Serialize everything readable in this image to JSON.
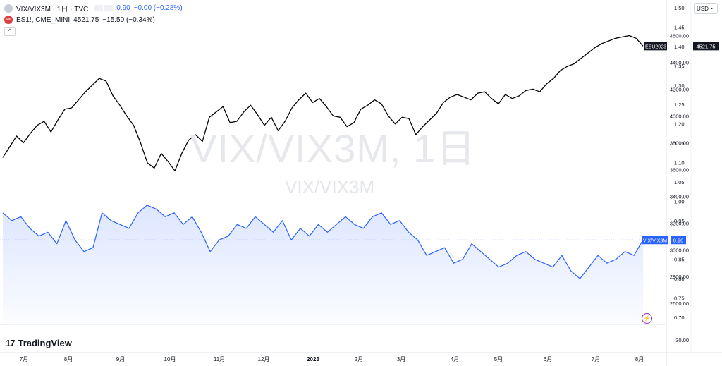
{
  "legend": {
    "main": {
      "symbol": "VIX/VIX3M · 1日 · TVC",
      "value": "0.90",
      "change": "−0.00 (−0.28%)"
    },
    "compare": {
      "symbol": "ES1!, CME_MINI",
      "value": "4521.75",
      "change": "−15.50 (−0.34%)",
      "icon_text": "500"
    },
    "collapse": "^"
  },
  "currency": "USD",
  "watermark": {
    "title": "VIX/VIX3M, 1日",
    "subtitle": "VIX/VIX3M"
  },
  "logo": {
    "mark": "17",
    "text": "TradingView"
  },
  "icons": {
    "flash": "⚡"
  },
  "colors": {
    "es_line": "#000000",
    "vix_line": "#2962ff",
    "vix_area": "#2962ff",
    "label_dark": "#131722"
  },
  "chart_data": {
    "type": "line",
    "x_ticks": [
      "7月",
      "8月",
      "9月",
      "10月",
      "11月",
      "12月",
      "2023",
      "2月",
      "3月",
      "4月",
      "5月",
      "6月",
      "7月",
      "8月"
    ],
    "series": [
      {
        "name": "ESU2023",
        "axis": "left",
        "scale_range": [
          2500,
          4800
        ],
        "last_value": "4521.75",
        "values": [
          3690,
          3770,
          3850,
          3800,
          3870,
          3930,
          3960,
          3880,
          3970,
          4050,
          4060,
          4120,
          4180,
          4230,
          4280,
          4260,
          4150,
          4080,
          4000,
          3930,
          3800,
          3650,
          3610,
          3720,
          3660,
          3590,
          3720,
          3820,
          3860,
          3810,
          3990,
          4030,
          4070,
          3950,
          3960,
          4030,
          4080,
          4010,
          3930,
          3990,
          3890,
          3960,
          4060,
          4120,
          4170,
          4100,
          4130,
          4070,
          4000,
          3990,
          3920,
          3950,
          4050,
          4080,
          4120,
          4090,
          4000,
          3940,
          3990,
          3980,
          3860,
          3920,
          3970,
          4020,
          4100,
          4140,
          4160,
          4140,
          4120,
          4170,
          4180,
          4130,
          4090,
          4160,
          4130,
          4150,
          4190,
          4200,
          4180,
          4240,
          4280,
          4340,
          4370,
          4390,
          4430,
          4470,
          4510,
          4540,
          4560,
          4580,
          4590,
          4600,
          4580,
          4521.75
        ]
      },
      {
        "name": "VIX/VIX3M",
        "axis": "right",
        "scale_range": [
          0.7,
          1.5
        ],
        "last_value": "0.90",
        "values": [
          0.97,
          0.95,
          0.96,
          0.93,
          0.91,
          0.92,
          0.89,
          0.95,
          0.9,
          0.87,
          0.88,
          0.97,
          0.95,
          0.94,
          0.93,
          0.97,
          0.99,
          0.98,
          0.96,
          0.97,
          0.94,
          0.96,
          0.92,
          0.87,
          0.9,
          0.91,
          0.94,
          0.93,
          0.96,
          0.94,
          0.92,
          0.95,
          0.9,
          0.93,
          0.91,
          0.94,
          0.92,
          0.94,
          0.96,
          0.94,
          0.93,
          0.96,
          0.97,
          0.94,
          0.95,
          0.92,
          0.9,
          0.86,
          0.87,
          0.88,
          0.84,
          0.85,
          0.89,
          0.87,
          0.85,
          0.83,
          0.84,
          0.86,
          0.87,
          0.85,
          0.84,
          0.83,
          0.86,
          0.82,
          0.8,
          0.83,
          0.86,
          0.84,
          0.85,
          0.87,
          0.86,
          0.9
        ]
      }
    ],
    "left_axis": {
      "ticks": [
        {
          "label": "4600.00",
          "v": 4600
        },
        {
          "label": "4400.00",
          "v": 4400
        },
        {
          "label": "4200.00",
          "v": 4200
        },
        {
          "label": "4000.00",
          "v": 4000
        },
        {
          "label": "3800.00",
          "v": 3800
        },
        {
          "label": "3600.00",
          "v": 3600
        },
        {
          "label": "3400.00",
          "v": 3400
        },
        {
          "label": "3200.00",
          "v": 3200
        },
        {
          "label": "3000.00",
          "v": 3000
        },
        {
          "label": "2800.00",
          "v": 2800
        },
        {
          "label": "2600.00",
          "v": 2600
        }
      ]
    },
    "right_axis": {
      "ticks": [
        "1.50",
        "1.45",
        "1.40",
        "1.35",
        "1.30",
        "1.25",
        "1.20",
        "1.15",
        "1.10",
        "1.05",
        "1.00",
        "0.95",
        "0.90",
        "0.85",
        "0.80",
        "0.75",
        "0.70"
      ]
    },
    "volume_axis": {
      "ticks": [
        "30.00"
      ]
    },
    "labels": {
      "es_tag": "ESU2023",
      "es_value": "4521.75",
      "vix_tag": "VIX/VIX3M",
      "vix_value": "0.90"
    }
  }
}
